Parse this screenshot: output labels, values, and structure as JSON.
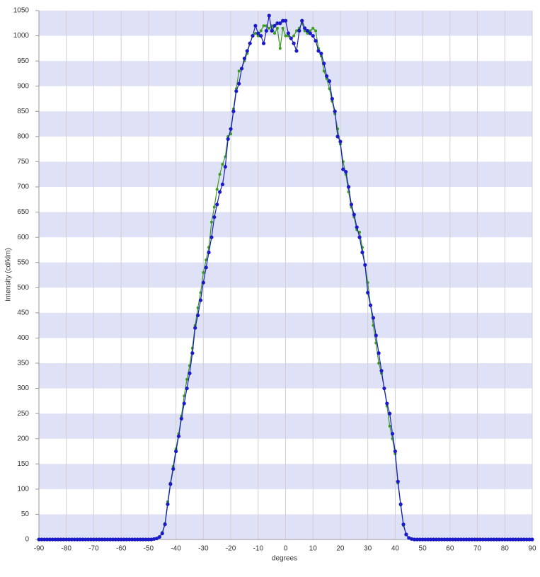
{
  "chart_data": {
    "type": "line",
    "x_label": "degrees",
    "y_label": "Intensity (cd/klm)",
    "x": [
      -90,
      -89,
      -88,
      -87,
      -86,
      -85,
      -84,
      -83,
      -82,
      -81,
      -80,
      -79,
      -78,
      -77,
      -76,
      -75,
      -74,
      -73,
      -72,
      -71,
      -70,
      -69,
      -68,
      -67,
      -66,
      -65,
      -64,
      -63,
      -62,
      -61,
      -60,
      -59,
      -58,
      -57,
      -56,
      -55,
      -54,
      -53,
      -52,
      -51,
      -50,
      -49,
      -48,
      -47,
      -46,
      -45,
      -44,
      -43,
      -42,
      -41,
      -40,
      -39,
      -38,
      -37,
      -36,
      -35,
      -34,
      -33,
      -32,
      -31,
      -30,
      -29,
      -28,
      -27,
      -26,
      -25,
      -24,
      -23,
      -22,
      -21,
      -20,
      -19,
      -18,
      -17,
      -16,
      -15,
      -14,
      -13,
      -12,
      -11,
      -10,
      -9,
      -8,
      -7,
      -6,
      -5,
      -4,
      -3,
      -2,
      -1,
      0,
      1,
      2,
      3,
      4,
      5,
      6,
      7,
      8,
      9,
      10,
      11,
      12,
      13,
      14,
      15,
      16,
      17,
      18,
      19,
      20,
      21,
      22,
      23,
      24,
      25,
      26,
      27,
      28,
      29,
      30,
      31,
      32,
      33,
      34,
      35,
      36,
      37,
      38,
      39,
      40,
      41,
      42,
      43,
      44,
      45,
      46,
      47,
      48,
      49,
      50,
      51,
      52,
      53,
      54,
      55,
      56,
      57,
      58,
      59,
      60,
      61,
      62,
      63,
      64,
      65,
      66,
      67,
      68,
      69,
      70,
      71,
      72,
      73,
      74,
      75,
      76,
      77,
      78,
      79,
      80,
      81,
      82,
      83,
      84,
      85,
      86,
      87,
      88,
      89,
      90
    ],
    "series": [
      {
        "color": "#3c9a1e",
        "marker_size": 2,
        "values": [
          0,
          0,
          0,
          0,
          0,
          0,
          0,
          0,
          0,
          0,
          0,
          0,
          0,
          0,
          0,
          0,
          0,
          0,
          0,
          0,
          0,
          0,
          0,
          0,
          0,
          0,
          0,
          0,
          0,
          0,
          0,
          0,
          0,
          0,
          0,
          0,
          0,
          0,
          0,
          0,
          0,
          0,
          1,
          2,
          5,
          14,
          32,
          75,
          112,
          145,
          180,
          210,
          245,
          285,
          318,
          345,
          380,
          425,
          460,
          490,
          530,
          555,
          580,
          630,
          660,
          695,
          725,
          745,
          760,
          800,
          805,
          855,
          895,
          930,
          935,
          950,
          965,
          985,
          1000,
          1005,
          1000,
          1010,
          1020,
          1020,
          1015,
          1020,
          1005,
          1015,
          975,
          1015,
          1000,
          1000,
          995,
          1000,
          1010,
          1015,
          1025,
          1010,
          1005,
          1010,
          1015,
          1010,
          975,
          960,
          930,
          915,
          895,
          870,
          845,
          815,
          785,
          750,
          725,
          690,
          660,
          640,
          615,
          610,
          580,
          545,
          510,
          465,
          425,
          390,
          350,
          330,
          300,
          265,
          225,
          200,
          170,
          112,
          68,
          28,
          9,
          3,
          1,
          0,
          0,
          0,
          0,
          0,
          0,
          0,
          0,
          0,
          0,
          0,
          0,
          0,
          0,
          0,
          0,
          0,
          0,
          0,
          0,
          0,
          0,
          0,
          0,
          0,
          0,
          0,
          0,
          0,
          0,
          0,
          0,
          0,
          0,
          0,
          0,
          0,
          0,
          0,
          0,
          0,
          0,
          0,
          0
        ]
      },
      {
        "color": "#1a1ac8",
        "marker_size": 2.6,
        "values": [
          0,
          0,
          0,
          0,
          0,
          0,
          0,
          0,
          0,
          0,
          0,
          0,
          0,
          0,
          0,
          0,
          0,
          0,
          0,
          0,
          0,
          0,
          0,
          0,
          0,
          0,
          0,
          0,
          0,
          0,
          0,
          0,
          0,
          0,
          0,
          0,
          0,
          0,
          0,
          0,
          0,
          0,
          1,
          2,
          5,
          12,
          30,
          70,
          110,
          140,
          175,
          205,
          240,
          270,
          300,
          330,
          370,
          420,
          445,
          475,
          510,
          540,
          570,
          600,
          640,
          665,
          690,
          705,
          740,
          795,
          815,
          850,
          890,
          905,
          935,
          955,
          970,
          985,
          1000,
          1020,
          1005,
          1000,
          985,
          1010,
          1040,
          1010,
          1020,
          1025,
          1025,
          1030,
          1030,
          1005,
          995,
          985,
          970,
          1010,
          1030,
          1015,
          1010,
          1005,
          1000,
          990,
          970,
          965,
          945,
          920,
          910,
          875,
          850,
          800,
          790,
          735,
          730,
          700,
          665,
          645,
          620,
          600,
          570,
          545,
          490,
          465,
          440,
          405,
          370,
          335,
          300,
          270,
          250,
          210,
          175,
          115,
          70,
          30,
          10,
          3,
          1,
          0,
          0,
          0,
          0,
          0,
          0,
          0,
          0,
          0,
          0,
          0,
          0,
          0,
          0,
          0,
          0,
          0,
          0,
          0,
          0,
          0,
          0,
          0,
          0,
          0,
          0,
          0,
          0,
          0,
          0,
          0,
          0,
          0,
          0,
          0,
          0,
          0,
          0,
          0,
          0,
          0,
          0,
          0,
          0
        ]
      }
    ],
    "xlim": [
      -90,
      90
    ],
    "xticks": [
      -90,
      -80,
      -70,
      -60,
      -50,
      -40,
      -30,
      -20,
      -10,
      0,
      10,
      20,
      30,
      40,
      50,
      60,
      70,
      80,
      90
    ],
    "ylim": [
      0,
      1050
    ],
    "yticks": [
      0,
      50,
      100,
      150,
      200,
      250,
      300,
      350,
      400,
      450,
      500,
      550,
      600,
      650,
      700,
      750,
      800,
      850,
      900,
      950,
      1000,
      1050
    ],
    "bands": true,
    "band_color": "#dfe1f6",
    "grid": true
  }
}
